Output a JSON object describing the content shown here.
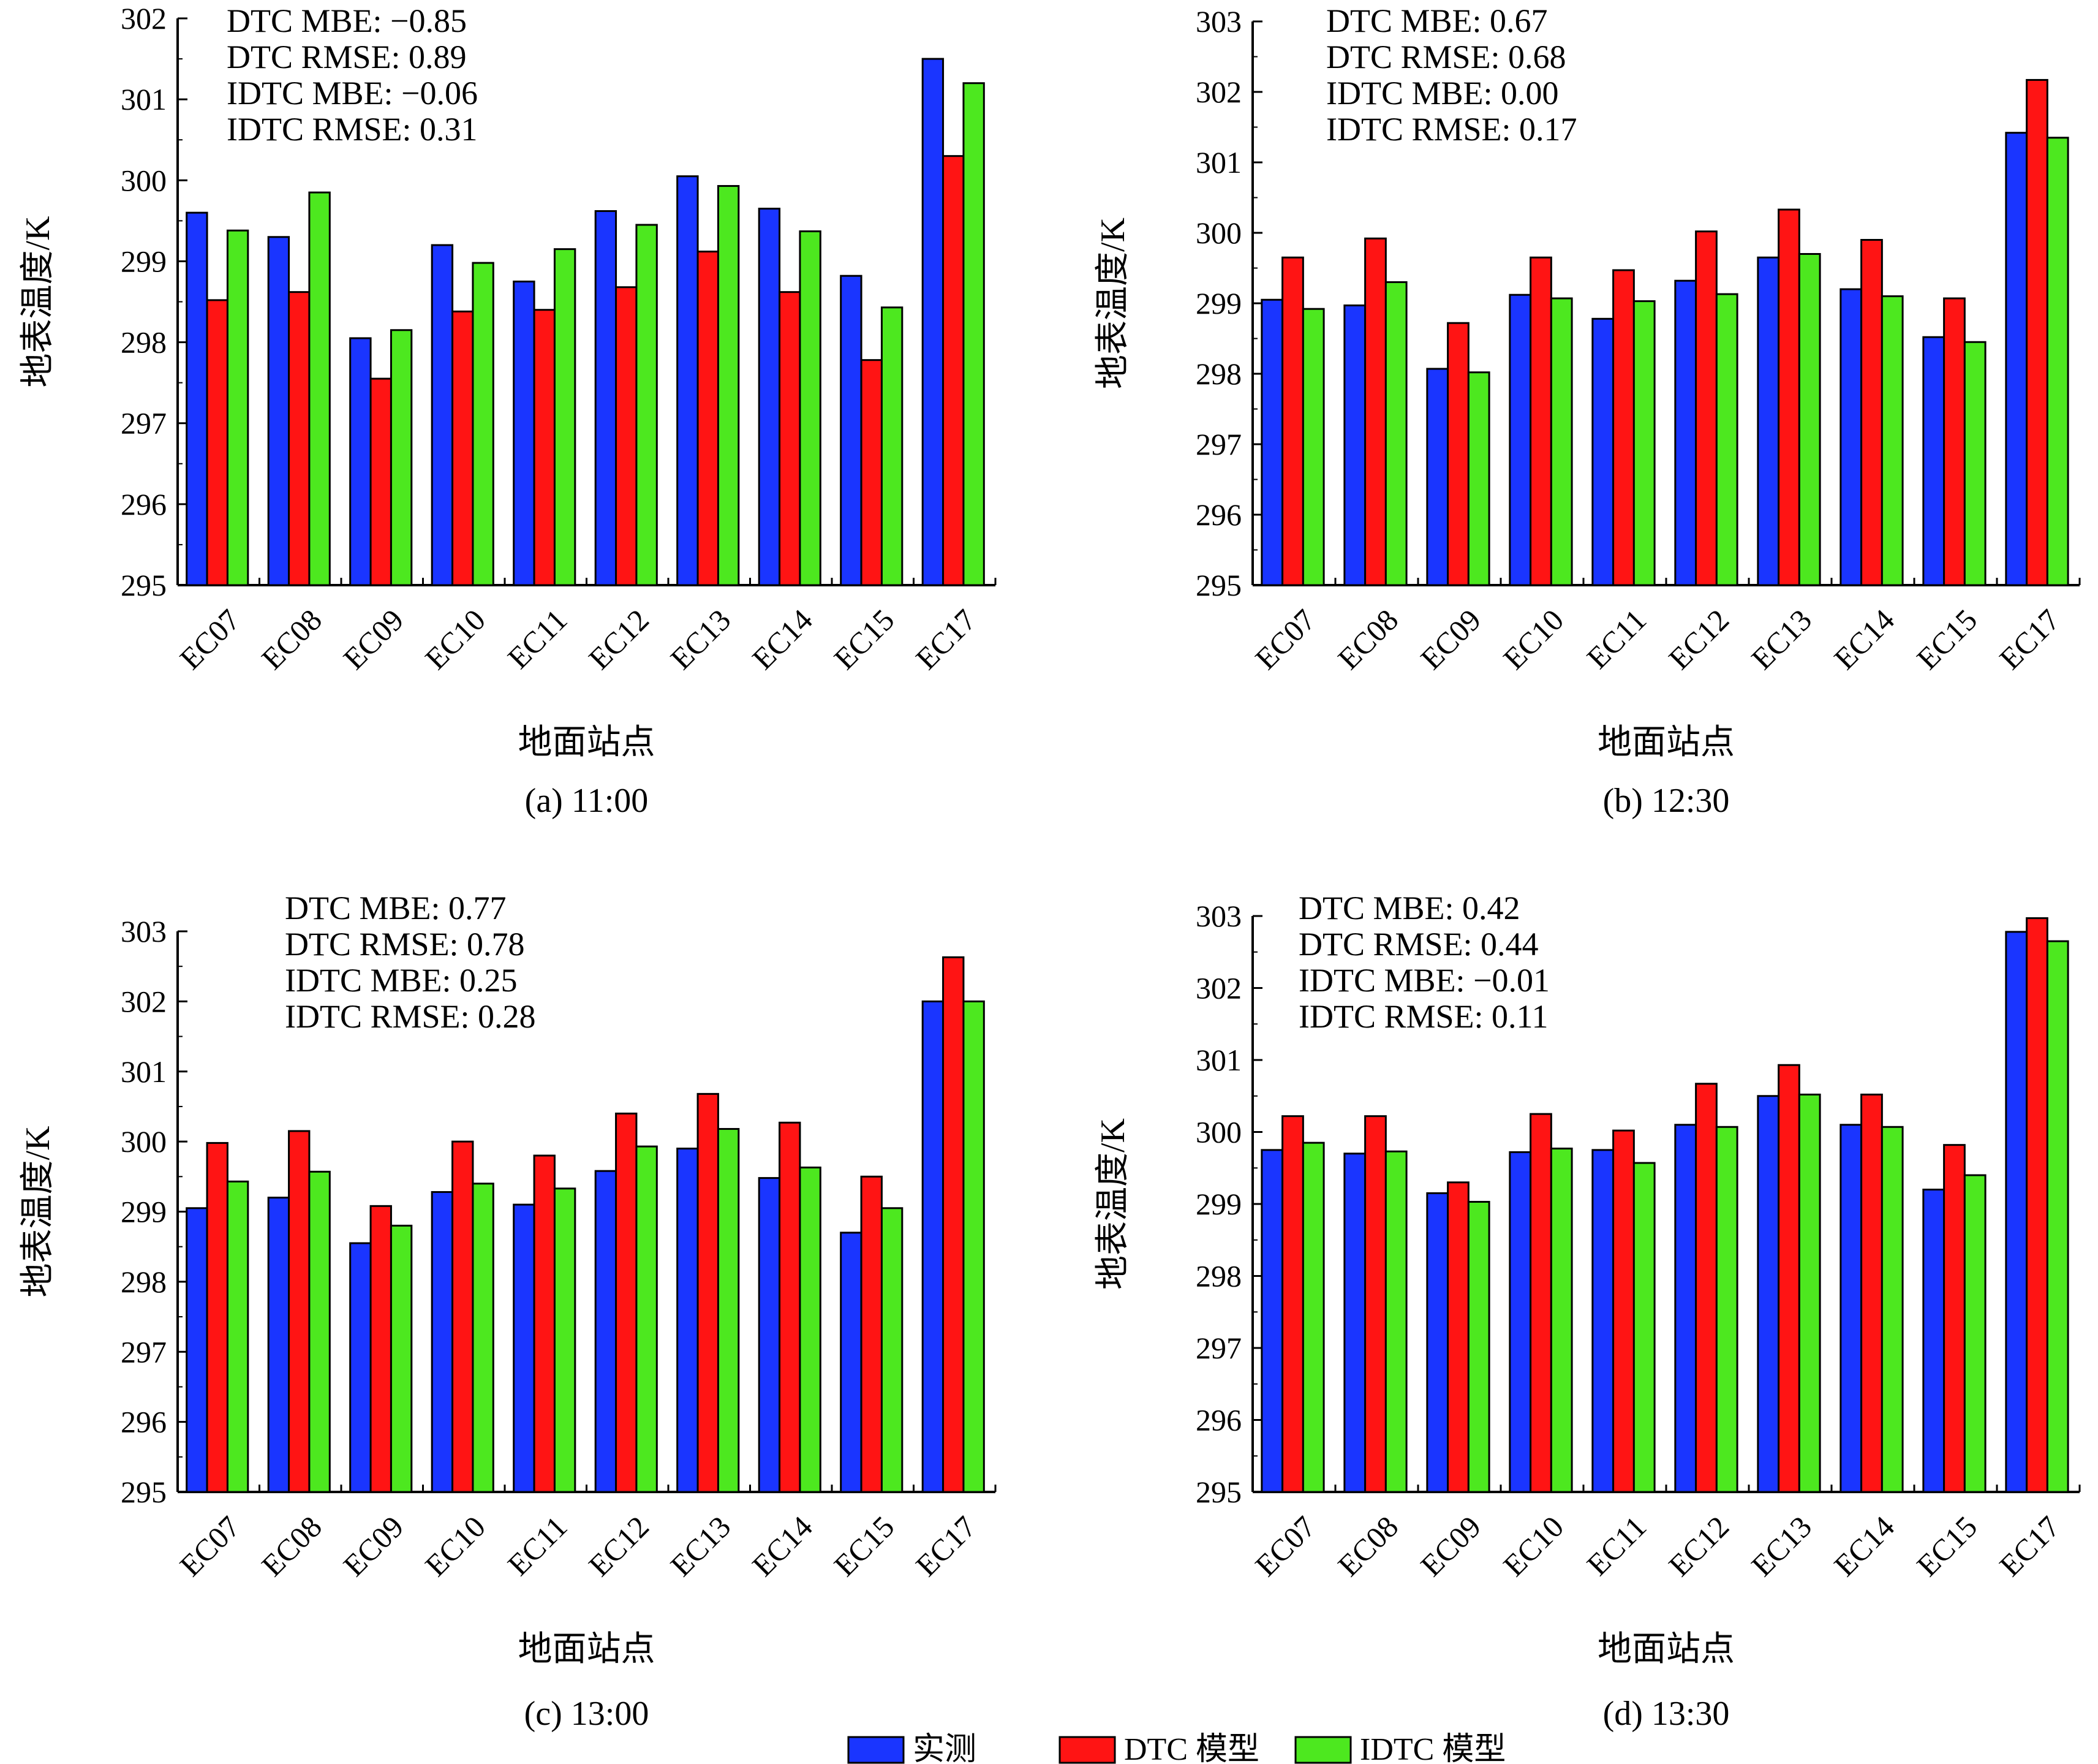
{
  "colors": {
    "measured": "#1a35ff",
    "dtc": "#ff1414",
    "idtc": "#4de81f",
    "axis": "#000000"
  },
  "legend": {
    "items": [
      {
        "label": "实测",
        "color_key": "measured"
      },
      {
        "label": "DTC 模型",
        "color_key": "dtc"
      },
      {
        "label": "IDTC 模型",
        "color_key": "idtc"
      }
    ]
  },
  "chart_data": [
    {
      "type": "bar",
      "caption": "(a) 11:00",
      "xlabel": "地面站点",
      "ylabel": "地表温度/K",
      "ylim": [
        295,
        302
      ],
      "yticks": [
        295,
        296,
        297,
        298,
        299,
        300,
        301,
        302
      ],
      "categories": [
        "EC07",
        "EC08",
        "EC09",
        "EC10",
        "EC11",
        "EC12",
        "EC13",
        "EC14",
        "EC15",
        "EC17"
      ],
      "series": [
        {
          "name": "实测",
          "values": [
            299.6,
            299.3,
            298.05,
            299.2,
            298.75,
            299.62,
            300.05,
            299.65,
            298.82,
            301.5
          ]
        },
        {
          "name": "DTC 模型",
          "values": [
            298.52,
            298.62,
            297.55,
            298.38,
            298.4,
            298.68,
            299.12,
            298.62,
            297.78,
            300.3
          ]
        },
        {
          "name": "IDTC 模型",
          "values": [
            299.38,
            299.85,
            298.15,
            298.98,
            299.15,
            299.45,
            299.93,
            299.37,
            298.43,
            301.2
          ]
        }
      ],
      "stats": [
        "DTC MBE: −0.85",
        "DTC RMSE: 0.89",
        "IDTC MBE: −0.06",
        "IDTC RMSE: 0.31"
      ]
    },
    {
      "type": "bar",
      "caption": "(b) 12:30",
      "xlabel": "地面站点",
      "ylabel": "地表温度/K",
      "ylim": [
        295,
        303
      ],
      "yticks": [
        295,
        296,
        297,
        298,
        299,
        300,
        301,
        302,
        303
      ],
      "categories": [
        "EC07",
        "EC08",
        "EC09",
        "EC10",
        "EC11",
        "EC12",
        "EC13",
        "EC14",
        "EC15",
        "EC17"
      ],
      "series": [
        {
          "name": "实测",
          "values": [
            299.05,
            298.97,
            298.07,
            299.12,
            298.78,
            299.32,
            299.65,
            299.2,
            298.52,
            301.42
          ]
        },
        {
          "name": "DTC 模型",
          "values": [
            299.65,
            299.92,
            298.72,
            299.65,
            299.47,
            300.02,
            300.33,
            299.9,
            299.07,
            302.17
          ]
        },
        {
          "name": "IDTC 模型",
          "values": [
            298.92,
            299.3,
            298.02,
            299.07,
            299.03,
            299.13,
            299.7,
            299.1,
            298.45,
            301.35
          ]
        }
      ],
      "stats": [
        "DTC MBE: 0.67",
        "DTC RMSE: 0.68",
        "IDTC MBE: 0.00",
        "IDTC RMSE: 0.17"
      ]
    },
    {
      "type": "bar",
      "caption": "(c) 13:00",
      "xlabel": "地面站点",
      "ylabel": "地表温度/K",
      "ylim": [
        295,
        303
      ],
      "yticks": [
        295,
        296,
        297,
        298,
        299,
        300,
        301,
        302,
        303
      ],
      "categories": [
        "EC07",
        "EC08",
        "EC09",
        "EC10",
        "EC11",
        "EC12",
        "EC13",
        "EC14",
        "EC15",
        "EC17"
      ],
      "series": [
        {
          "name": "实测",
          "values": [
            299.05,
            299.2,
            298.55,
            299.28,
            299.1,
            299.58,
            299.9,
            299.48,
            298.7,
            302.0
          ]
        },
        {
          "name": "DTC 模型",
          "values": [
            299.98,
            300.15,
            299.08,
            300.0,
            299.8,
            300.4,
            300.68,
            300.27,
            299.5,
            302.63
          ]
        },
        {
          "name": "IDTC 模型",
          "values": [
            299.43,
            299.57,
            298.8,
            299.4,
            299.33,
            299.93,
            300.18,
            299.63,
            299.05,
            302.0
          ]
        }
      ],
      "stats": [
        "DTC MBE: 0.77",
        "DTC RMSE: 0.78",
        "IDTC MBE: 0.25",
        "IDTC RMSE: 0.28"
      ]
    },
    {
      "type": "bar",
      "caption": "(d) 13:30",
      "xlabel": "地面站点",
      "ylabel": "地表温度/K",
      "ylim": [
        295,
        303
      ],
      "yticks": [
        295,
        296,
        297,
        298,
        299,
        300,
        301,
        302,
        303
      ],
      "categories": [
        "EC07",
        "EC08",
        "EC09",
        "EC10",
        "EC11",
        "EC12",
        "EC13",
        "EC14",
        "EC15",
        "EC17"
      ],
      "series": [
        {
          "name": "实测",
          "values": [
            299.75,
            299.7,
            299.15,
            299.72,
            299.75,
            300.1,
            300.5,
            300.1,
            299.2,
            302.78
          ]
        },
        {
          "name": "DTC 模型",
          "values": [
            300.22,
            300.22,
            299.3,
            300.25,
            300.02,
            300.67,
            300.93,
            300.52,
            299.82,
            302.97
          ]
        },
        {
          "name": "IDTC 模型",
          "values": [
            299.85,
            299.73,
            299.03,
            299.77,
            299.57,
            300.07,
            300.52,
            300.07,
            299.4,
            302.65
          ]
        }
      ],
      "stats": [
        "DTC MBE: 0.42",
        "DTC RMSE: 0.44",
        "IDTC MBE: −0.01",
        "IDTC RMSE: 0.11"
      ]
    }
  ]
}
